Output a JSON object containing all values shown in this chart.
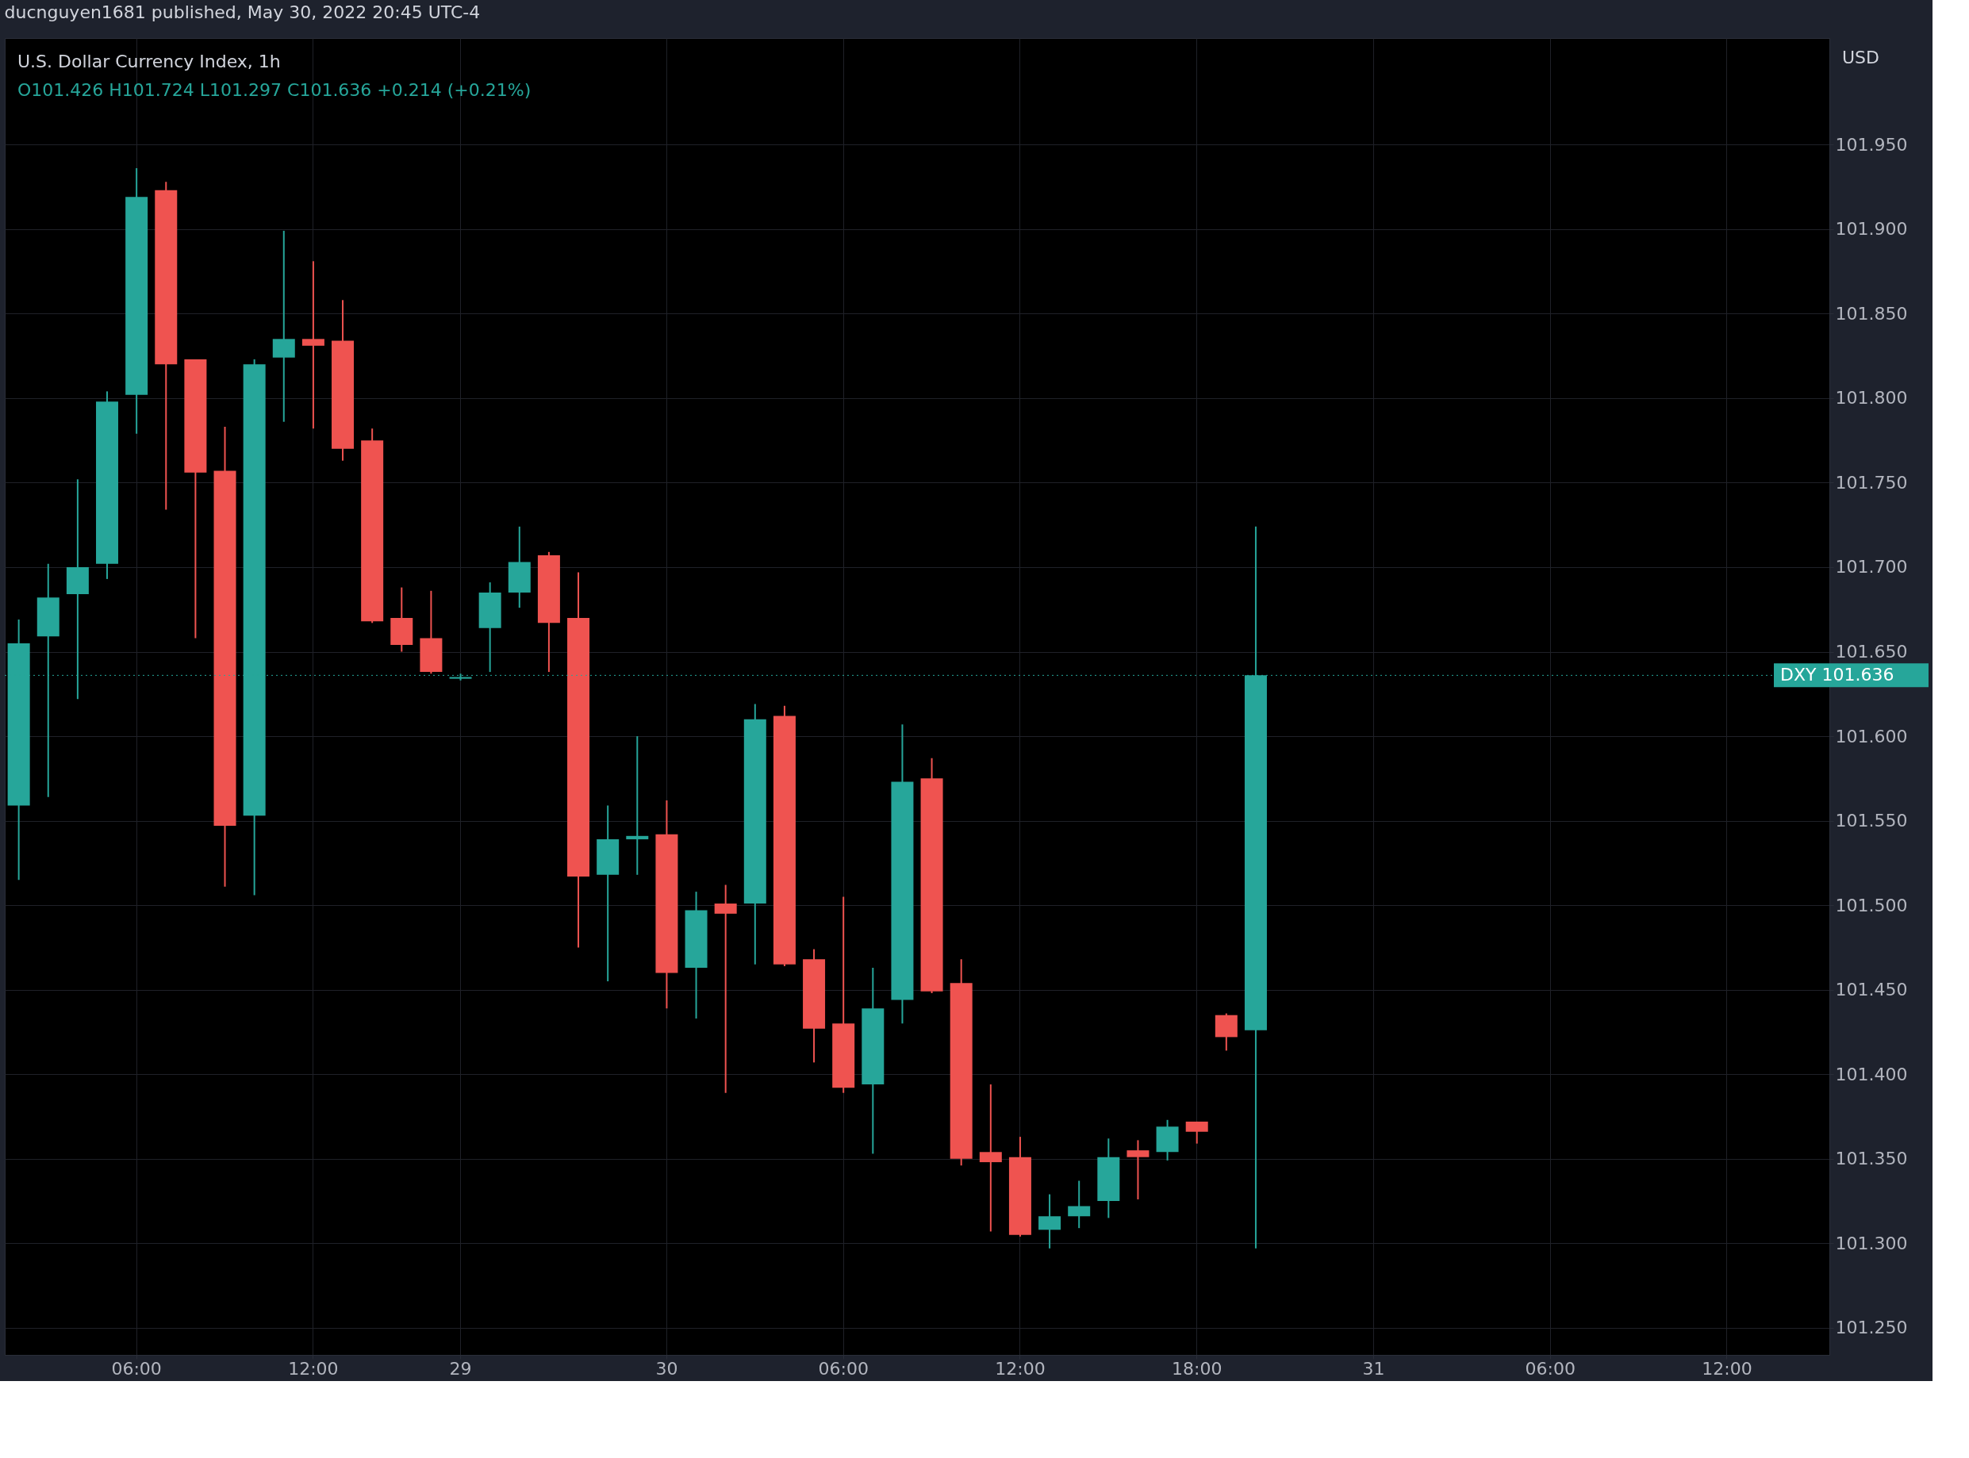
{
  "chart_data": {
    "type": "candlestick",
    "title": "U.S. Dollar Currency Index, 1h",
    "subtitle": "O101.426 H101.724 L101.297 C101.636 +0.214 (+0.21%)",
    "ylabel": "USD",
    "annotations": [
      "ducnguyen1681 published, May 30, 2022 20:45 UTC-4"
    ],
    "categories": [
      null,
      null,
      null,
      null,
      "06:00",
      null,
      null,
      null,
      null,
      null,
      "12:00",
      null,
      null,
      null,
      null,
      "29",
      null,
      null,
      null,
      null,
      null,
      null,
      "30",
      null,
      null,
      null,
      null,
      null,
      "06:00",
      null,
      null,
      null,
      null,
      null,
      "12:00",
      null,
      null,
      null,
      null,
      null,
      "18:00",
      null,
      null,
      null,
      null,
      null,
      "31",
      null,
      null,
      null,
      null,
      null,
      "06:00",
      null,
      null,
      null,
      null,
      null,
      "12:00",
      null,
      null,
      null
    ],
    "ohlc": [
      [
        101.559,
        101.669,
        101.515,
        101.655
      ],
      [
        101.659,
        101.702,
        101.564,
        101.682
      ],
      [
        101.684,
        101.752,
        101.622,
        101.7
      ],
      [
        101.702,
        101.804,
        101.693,
        101.798
      ],
      [
        101.802,
        101.936,
        101.779,
        101.919
      ],
      [
        101.923,
        101.928,
        101.734,
        101.82
      ],
      [
        101.823,
        101.823,
        101.658,
        101.756
      ],
      [
        101.757,
        101.783,
        101.511,
        101.547
      ],
      [
        101.553,
        101.823,
        101.506,
        101.82
      ],
      [
        101.824,
        101.899,
        101.786,
        101.835
      ],
      [
        101.835,
        101.881,
        101.782,
        101.831
      ],
      [
        101.834,
        101.858,
        101.763,
        101.77
      ],
      [
        101.775,
        101.782,
        101.667,
        101.668
      ],
      [
        101.67,
        101.688,
        101.65,
        101.654
      ],
      [
        101.658,
        101.686,
        101.637,
        101.638
      ],
      [
        101.634,
        101.637,
        101.633,
        101.635
      ],
      [
        101.664,
        101.691,
        101.638,
        101.685
      ],
      [
        101.685,
        101.724,
        101.676,
        101.703
      ],
      [
        101.707,
        101.709,
        101.638,
        101.667
      ],
      [
        101.67,
        101.697,
        101.475,
        101.517
      ],
      [
        101.518,
        101.559,
        101.455,
        101.539
      ],
      [
        101.539,
        101.6,
        101.518,
        101.541
      ],
      [
        101.542,
        101.562,
        101.439,
        101.46
      ],
      [
        101.463,
        101.508,
        101.433,
        101.497
      ],
      [
        101.501,
        101.512,
        101.389,
        101.495
      ],
      [
        101.501,
        101.619,
        101.465,
        101.61
      ],
      [
        101.612,
        101.618,
        101.464,
        101.465
      ],
      [
        101.468,
        101.474,
        101.407,
        101.427
      ],
      [
        101.43,
        101.505,
        101.389,
        101.392
      ],
      [
        101.394,
        101.463,
        101.353,
        101.439
      ],
      [
        101.444,
        101.607,
        101.43,
        101.573
      ],
      [
        101.575,
        101.587,
        101.448,
        101.449
      ],
      [
        101.454,
        101.468,
        101.346,
        101.35
      ],
      [
        101.354,
        101.394,
        101.307,
        101.348
      ],
      [
        101.351,
        101.363,
        101.304,
        101.305
      ],
      [
        101.308,
        101.329,
        101.297,
        101.316
      ],
      [
        101.316,
        101.337,
        101.309,
        101.322
      ],
      [
        101.325,
        101.362,
        101.315,
        101.351
      ],
      [
        101.355,
        101.361,
        101.326,
        101.351
      ],
      [
        101.354,
        101.373,
        101.349,
        101.369
      ],
      [
        101.372,
        101.372,
        101.359,
        101.366
      ],
      [
        101.435,
        101.436,
        101.414,
        101.422
      ],
      [
        101.426,
        101.724,
        101.297,
        101.636
      ],
      null,
      null,
      null,
      null,
      null,
      null,
      null,
      null,
      null,
      null,
      null,
      null,
      null,
      null,
      null,
      null,
      null,
      null,
      null
    ],
    "colors": [
      "#26a69a",
      "#26a69a",
      "#26a69a",
      "#26a69a",
      "#26a69a",
      "#ef5350",
      "#ef5350",
      "#ef5350",
      "#26a69a",
      "#26a69a",
      "#ef5350",
      "#ef5350",
      "#ef5350",
      "#ef5350",
      "#ef5350",
      "#26a69a",
      "#26a69a",
      "#26a69a",
      "#ef5350",
      "#ef5350",
      "#26a69a",
      "#26a69a",
      "#ef5350",
      "#26a69a",
      "#ef5350",
      "#26a69a",
      "#ef5350",
      "#ef5350",
      "#ef5350",
      "#26a69a",
      "#26a69a",
      "#ef5350",
      "#ef5350",
      "#ef5350",
      "#ef5350",
      "#26a69a",
      "#26a69a",
      "#26a69a",
      "#ef5350",
      "#26a69a",
      "#ef5350",
      "#ef5350",
      "#26a69a",
      null,
      null,
      null,
      null,
      null,
      null,
      null,
      null,
      null,
      null,
      null,
      null,
      null,
      null,
      null,
      null,
      null,
      null,
      null
    ],
    "ylim": [
      101.234,
      102.013
    ],
    "yticks": [
      {
        "value": 101.25,
        "label": "101.250"
      },
      {
        "value": 101.3,
        "label": "101.300"
      },
      {
        "value": 101.35,
        "label": "101.350"
      },
      {
        "value": 101.4,
        "label": "101.400"
      },
      {
        "value": 101.45,
        "label": "101.450"
      },
      {
        "value": 101.5,
        "label": "101.500"
      },
      {
        "value": 101.55,
        "label": "101.550"
      },
      {
        "value": 101.6,
        "label": "101.600"
      },
      {
        "value": 101.65,
        "label": "101.650"
      },
      {
        "value": 101.7,
        "label": "101.700"
      },
      {
        "value": 101.75,
        "label": "101.750"
      },
      {
        "value": 101.8,
        "label": "101.800"
      },
      {
        "value": 101.85,
        "label": "101.850"
      },
      {
        "value": 101.9,
        "label": "101.900"
      },
      {
        "value": 101.95,
        "label": "101.950"
      }
    ],
    "ref_lines": [
      {
        "axis": "y",
        "value": 101.636,
        "label": "DXY  101.636",
        "color": "#26a69a",
        "line_style": "dotted"
      }
    ],
    "grid": true
  }
}
